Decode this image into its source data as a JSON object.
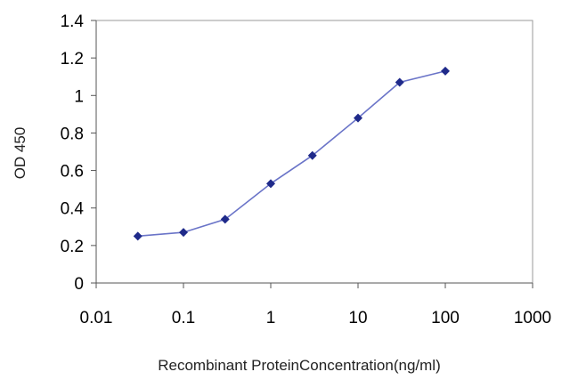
{
  "chart_data": {
    "type": "line",
    "title": "",
    "xlabel": "Recombinant ProteinConcentration(ng/ml)",
    "ylabel": "OD 450",
    "x_scale": "log",
    "xlim": [
      0.01,
      1000
    ],
    "ylim": [
      0,
      1.4
    ],
    "x_ticks": [
      0.01,
      0.1,
      1,
      10,
      100,
      1000
    ],
    "x_tick_labels": [
      "0.01",
      "0.1",
      "1",
      "10",
      "100",
      "1000"
    ],
    "y_ticks": [
      0,
      0.2,
      0.4,
      0.6,
      0.8,
      1,
      1.2,
      1.4
    ],
    "y_tick_labels": [
      "0",
      "0.2",
      "0.4",
      "0.6",
      "0.8",
      "1",
      "1.2",
      "1.4"
    ],
    "grid": false,
    "legend": "none",
    "series": [
      {
        "color": "#1f2a8a",
        "line_color": "#6a74c8",
        "marker": "diamond",
        "x": [
          0.03,
          0.1,
          0.3,
          1,
          3,
          10,
          30,
          100
        ],
        "y": [
          0.25,
          0.27,
          0.34,
          0.53,
          0.68,
          0.88,
          1.07,
          1.13
        ]
      }
    ]
  }
}
